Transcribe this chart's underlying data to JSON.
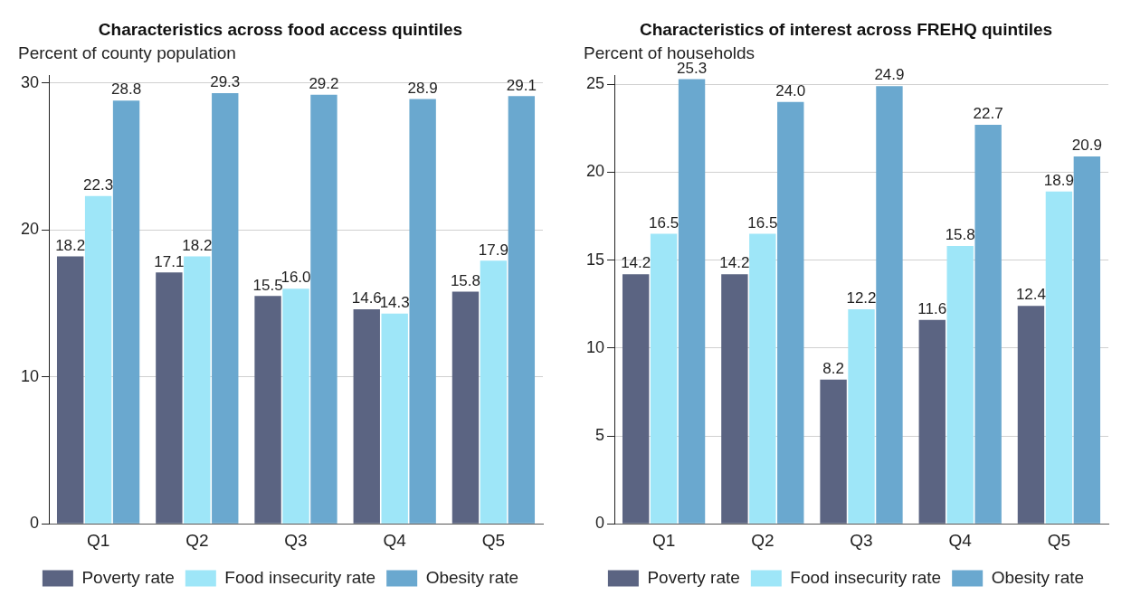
{
  "chart_data": [
    {
      "type": "bar",
      "title": "Characteristics across food access quintiles",
      "ylabel": "Percent of county population",
      "categories": [
        "Q1",
        "Q2",
        "Q3",
        "Q4",
        "Q5"
      ],
      "series": [
        {
          "name": "Poverty rate",
          "color": "#5b6482",
          "values": [
            18.2,
            17.1,
            15.5,
            14.6,
            15.8
          ]
        },
        {
          "name": "Food insecurity rate",
          "color": "#9ee6f8",
          "values": [
            22.3,
            18.2,
            16.0,
            14.3,
            17.9
          ],
          "value_labels": [
            "22.3",
            "18.2",
            "16.0",
            "14.3",
            "17.9"
          ]
        },
        {
          "name": "Obesity rate",
          "color": "#6aa8cf",
          "values": [
            28.8,
            29.3,
            29.2,
            28.9,
            29.1
          ]
        }
      ],
      "ylim": [
        0,
        30.5
      ],
      "yticks": [
        0,
        10,
        20,
        30
      ],
      "grid": "y",
      "legend": "bottom",
      "data_labels": true
    },
    {
      "type": "bar",
      "title": "Characteristics of interest across FREHQ quintiles",
      "ylabel": "Percent of households",
      "categories": [
        "Q1",
        "Q2",
        "Q3",
        "Q4",
        "Q5"
      ],
      "series": [
        {
          "name": "Poverty rate",
          "color": "#5b6482",
          "values": [
            14.2,
            14.2,
            8.2,
            11.6,
            12.4
          ]
        },
        {
          "name": "Food insecurity rate",
          "color": "#9ee6f8",
          "values": [
            16.5,
            16.5,
            12.2,
            15.8,
            18.9
          ]
        },
        {
          "name": "Obesity rate",
          "color": "#6aa8cf",
          "values": [
            25.3,
            24.0,
            24.9,
            22.7,
            20.9
          ],
          "value_labels": [
            "25.3",
            "24.0",
            "24.9",
            "22.7",
            "20.9"
          ]
        }
      ],
      "ylim": [
        0,
        25.5
      ],
      "yticks": [
        0,
        5,
        10,
        15,
        20,
        25
      ],
      "grid": "y",
      "legend": "bottom",
      "data_labels": true
    }
  ]
}
